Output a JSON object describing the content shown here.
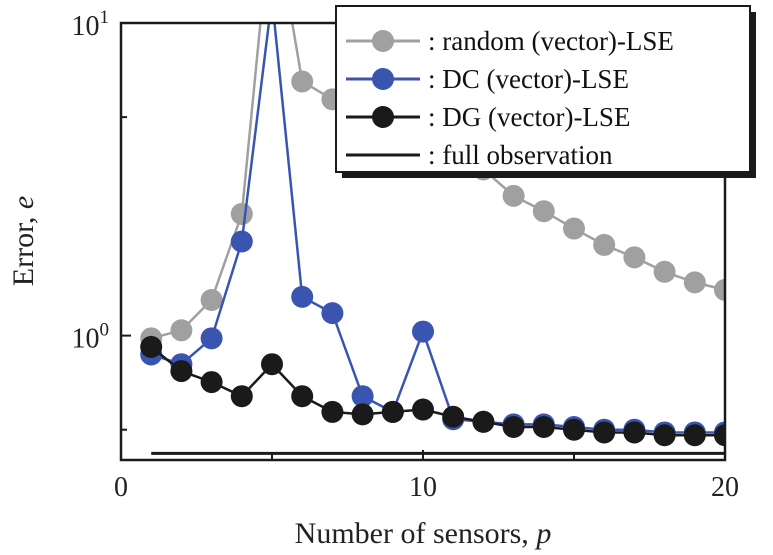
{
  "chart_data": {
    "type": "line",
    "xlabel": "Number of sensors, ",
    "xlabel_var": "p",
    "ylabel": "Error, ",
    "ylabel_var": "e",
    "xlim": [
      0,
      20
    ],
    "ylim": [
      0.4,
      10
    ],
    "yscale": "log",
    "x_ticks": [
      "0",
      "10",
      "20"
    ],
    "y_ticks": [
      {
        "base": "10",
        "exp": "0",
        "value": 1
      },
      {
        "base": "10",
        "exp": "1",
        "value": 10
      }
    ],
    "legend_position": "top-right",
    "x": [
      1,
      2,
      3,
      4,
      5,
      6,
      7,
      8,
      9,
      10,
      11,
      12,
      13,
      14,
      15,
      16,
      17,
      18,
      19,
      20
    ],
    "series": [
      {
        "name": ": random (vector)-LSE",
        "color": "#a0a0a0",
        "marker": true,
        "values": [
          0.98,
          1.04,
          1.3,
          2.45,
          24,
          6.5,
          5.7,
          5.1,
          4.6,
          4.2,
          3.8,
          3.4,
          2.8,
          2.5,
          2.2,
          1.95,
          1.78,
          1.6,
          1.48,
          1.4
        ]
      },
      {
        "name": ": DC (vector)-LSE",
        "color": "#3a55b0",
        "marker": true,
        "values": [
          0.87,
          0.81,
          0.98,
          2.0,
          12,
          1.33,
          1.18,
          0.64,
          0.57,
          1.03,
          0.54,
          0.53,
          0.52,
          0.52,
          0.51,
          0.5,
          0.5,
          0.49,
          0.49,
          0.49
        ]
      },
      {
        "name": ": DG (vector)-LSE",
        "color": "#1a1a1a",
        "marker": true,
        "values": [
          0.92,
          0.77,
          0.71,
          0.64,
          0.81,
          0.64,
          0.57,
          0.56,
          0.57,
          0.58,
          0.55,
          0.53,
          0.51,
          0.51,
          0.5,
          0.49,
          0.49,
          0.48,
          0.48,
          0.48
        ]
      },
      {
        "name": ": full observation",
        "color": "#1a1a1a",
        "marker": false,
        "values": [
          0.42,
          0.42,
          0.42,
          0.42,
          0.42,
          0.42,
          0.42,
          0.42,
          0.42,
          0.42,
          0.42,
          0.42,
          0.42,
          0.42,
          0.42,
          0.42,
          0.42,
          0.42,
          0.42,
          0.42
        ]
      }
    ]
  }
}
